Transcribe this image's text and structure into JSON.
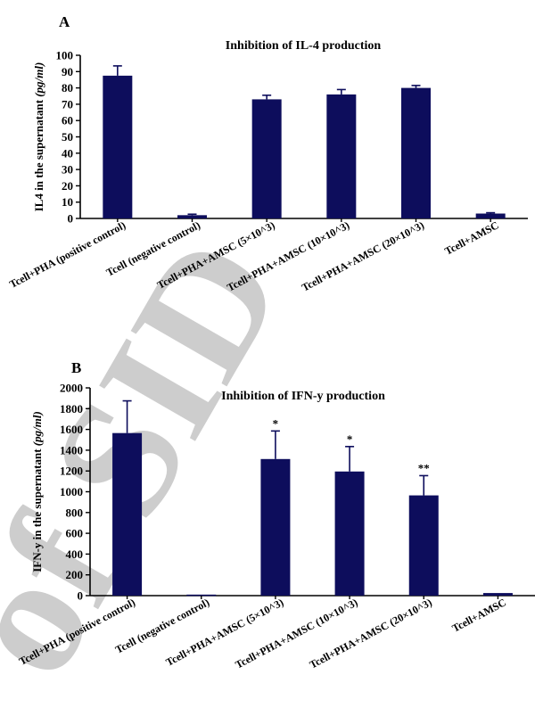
{
  "chart_data": [
    {
      "panel": "A",
      "type": "bar",
      "title": "Inhibition of IL-4 production",
      "ylabel_prefix": "IL4 in the supernatant ",
      "ylabel_unit": "(pg/ml)",
      "ylim": [
        0,
        100
      ],
      "yticks": [
        0,
        10,
        20,
        30,
        40,
        50,
        60,
        70,
        80,
        90,
        100
      ],
      "categories": [
        "Tcell+PHA (positive control)",
        "Tcell (negative control)",
        "Tcell+PHA+AMSC (5×10^3)",
        "Tcell+PHA+AMSC (10×10^3)",
        "Tcell+PHA+AMSC (20×10^3)",
        "Tcell+AMSC"
      ],
      "values": [
        87.5,
        2,
        73,
        76,
        80,
        3
      ],
      "errors": [
        6,
        0.6,
        2.5,
        3,
        1.5,
        0.5
      ],
      "annotations": [
        "",
        "",
        "",
        "",
        "",
        ""
      ],
      "bar_color": "#0d0d5c"
    },
    {
      "panel": "B",
      "type": "bar",
      "title": "Inhibition of IFN-y production",
      "ylabel_prefix": "IFN-y in the supernatant ",
      "ylabel_unit": "(pg/ml)",
      "ylim": [
        0,
        2000
      ],
      "yticks": [
        0,
        200,
        400,
        600,
        800,
        1000,
        1200,
        1400,
        1600,
        1800,
        2000
      ],
      "categories": [
        "Tcell+PHA (positive control)",
        "Tcell (negative control)",
        "Tcell+PHA+AMSC (5×10^3)",
        "Tcell+PHA+AMSC (10×10^3)",
        "Tcell+PHA+AMSC (20×10^3)",
        "Tcell+AMSC"
      ],
      "values": [
        1565,
        10,
        1315,
        1195,
        965,
        25
      ],
      "errors": [
        310,
        0,
        270,
        240,
        190,
        0
      ],
      "annotations": [
        "",
        "",
        "*",
        "*",
        "**",
        ""
      ],
      "bar_color": "#0d0d5c"
    }
  ],
  "watermark": {
    "text": "of SID",
    "color": "#bdbdbd"
  }
}
